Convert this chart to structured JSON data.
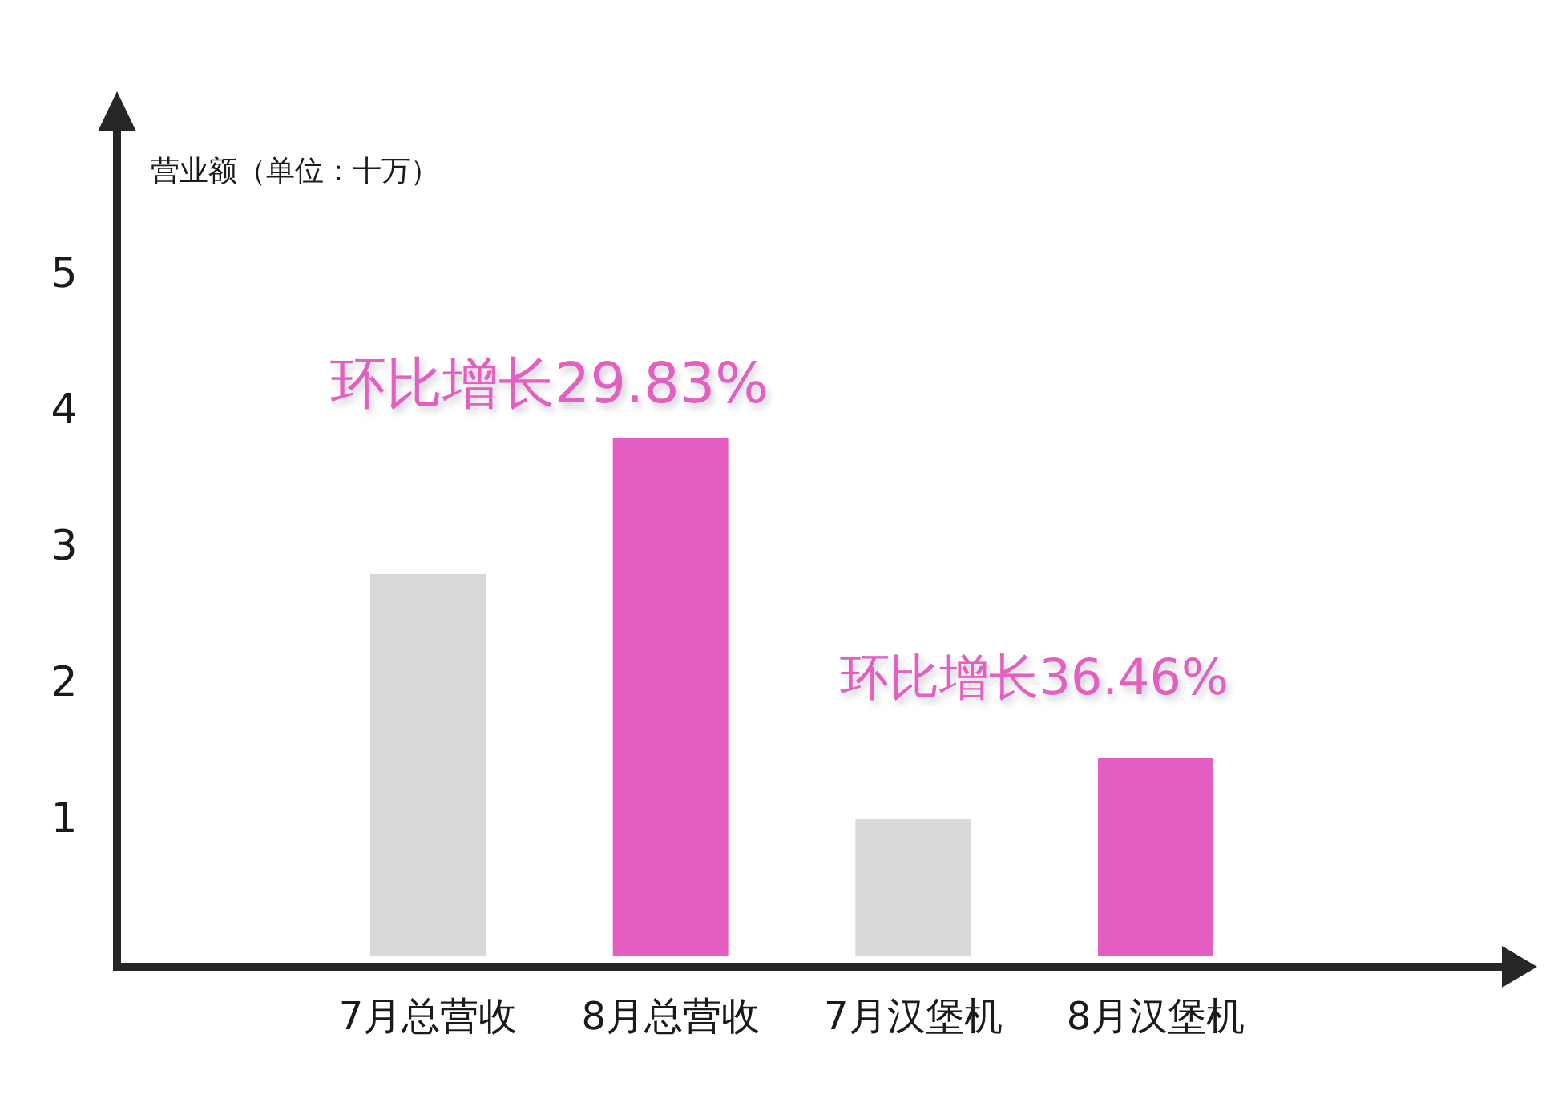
{
  "chart_data": {
    "type": "bar",
    "ylabel": "营业额（单位：十万）",
    "categories": [
      "7月总营收",
      "8月总营收",
      "7月汉堡机",
      "8月汉堡机"
    ],
    "values": [
      2.8,
      3.8,
      1.0,
      1.45
    ],
    "colors": [
      "#d9d9d9",
      "#e35ec0",
      "#d9d9d9",
      "#e35ec0"
    ],
    "ylim": [
      0,
      6
    ],
    "yticks": [
      1,
      2,
      3,
      4,
      5
    ],
    "annotations": [
      "环比增长29.83%",
      "环比增长36.46%"
    ]
  }
}
